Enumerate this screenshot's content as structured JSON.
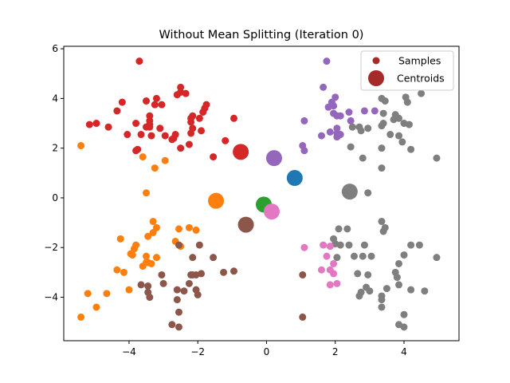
{
  "chart_data": {
    "type": "scatter",
    "title": "Without Mean Splitting (Iteration 0)",
    "xlabel": "",
    "ylabel": "",
    "xlim": [
      -5.9,
      5.6
    ],
    "ylim": [
      -5.75,
      6.1
    ],
    "xticks": [
      -4,
      -2,
      0,
      2,
      4
    ],
    "yticks": [
      -4,
      -2,
      0,
      2,
      4,
      6
    ],
    "xtick_labels": [
      "−4",
      "−2",
      "0",
      "2",
      "4"
    ],
    "ytick_labels": [
      "−4",
      "−2",
      "0",
      "2",
      "4",
      "6"
    ],
    "grid": false,
    "legend": {
      "placement": "top-right",
      "entries": [
        {
          "label": "Samples",
          "marker": "small-dot",
          "color": "#a52a2a"
        },
        {
          "label": "Centroids",
          "marker": "large-dot",
          "color": "#a52a2a"
        }
      ]
    },
    "series": [
      {
        "color": "#d62728",
        "points": [
          [
            -3.7,
            5.5
          ],
          [
            -2.5,
            4.45
          ],
          [
            -2.5,
            4.25
          ],
          [
            -2.35,
            4.2
          ],
          [
            -2.6,
            4.15
          ],
          [
            -3.2,
            4.0
          ],
          [
            -3.25,
            3.75
          ],
          [
            -3.05,
            3.75
          ],
          [
            -3.5,
            3.9
          ],
          [
            -4.2,
            3.85
          ],
          [
            -4.35,
            3.5
          ],
          [
            -1.75,
            3.75
          ],
          [
            -1.8,
            3.6
          ],
          [
            -1.85,
            3.45
          ],
          [
            -2.15,
            3.3
          ],
          [
            -2.2,
            3.2
          ],
          [
            -1.95,
            3.2
          ],
          [
            -3.4,
            3.3
          ],
          [
            -3.4,
            3.1
          ],
          [
            -2.2,
            3.05
          ],
          [
            -0.95,
            3.2
          ],
          [
            -3.8,
            3.0
          ],
          [
            -3.4,
            2.95
          ],
          [
            -3.5,
            2.85
          ],
          [
            -3.4,
            2.85
          ],
          [
            -4.95,
            3.0
          ],
          [
            -5.15,
            2.95
          ],
          [
            -4.6,
            2.85
          ],
          [
            -3.1,
            2.8
          ],
          [
            -2.15,
            2.8
          ],
          [
            -1.9,
            2.7
          ],
          [
            -2.65,
            2.55
          ],
          [
            -2.2,
            2.6
          ],
          [
            -3.65,
            2.55
          ],
          [
            -3.35,
            2.5
          ],
          [
            -4.05,
            2.55
          ],
          [
            -2.7,
            2.4
          ],
          [
            -2.75,
            2.35
          ],
          [
            -2.95,
            2.5
          ],
          [
            -1.2,
            2.3
          ],
          [
            -2.25,
            2.15
          ],
          [
            -1.55,
            1.65
          ],
          [
            -2.5,
            2.0
          ],
          [
            -3.8,
            1.9
          ],
          [
            -3.75,
            1.95
          ]
        ]
      },
      {
        "color": "#ff7f0e",
        "points": [
          [
            -5.4,
            2.1
          ],
          [
            -3.6,
            1.65
          ],
          [
            -3.25,
            1.2
          ],
          [
            -2.95,
            1.5
          ],
          [
            -3.5,
            0.2
          ],
          [
            -3.3,
            -0.95
          ],
          [
            -3.2,
            -1.2
          ],
          [
            -3.3,
            -1.4
          ],
          [
            -3.45,
            -1.55
          ],
          [
            -2.55,
            -1.25
          ],
          [
            -2.05,
            -1.3
          ],
          [
            -2.25,
            -1.2
          ],
          [
            -4.25,
            -1.65
          ],
          [
            -3.8,
            -1.9
          ],
          [
            -3.85,
            -2.05
          ],
          [
            -3.95,
            -2.25
          ],
          [
            -3.9,
            -2.3
          ],
          [
            -3.5,
            -2.35
          ],
          [
            -3.2,
            -2.4
          ],
          [
            -3.5,
            -2.6
          ],
          [
            -3.6,
            -2.75
          ],
          [
            -3.45,
            -2.6
          ],
          [
            -3.35,
            -2.65
          ],
          [
            -4.35,
            -2.9
          ],
          [
            -4.15,
            -3.0
          ],
          [
            -4.0,
            -3.7
          ],
          [
            -5.2,
            -3.85
          ],
          [
            -4.65,
            -3.85
          ],
          [
            -4.95,
            -4.4
          ],
          [
            -5.4,
            -4.8
          ],
          [
            -2.65,
            -1.75
          ],
          [
            -2.5,
            -1.95
          ]
        ]
      },
      {
        "color": "#8c564b",
        "points": [
          [
            -2.55,
            -1.9
          ],
          [
            -1.95,
            -1.9
          ],
          [
            -2.15,
            -2.4
          ],
          [
            -1.55,
            -2.4
          ],
          [
            -3.05,
            -3.1
          ],
          [
            -2.2,
            -3.1
          ],
          [
            -2.15,
            -3.1
          ],
          [
            -2.05,
            -3.1
          ],
          [
            -1.9,
            -3.05
          ],
          [
            -1.25,
            -3.0
          ],
          [
            -0.95,
            -2.95
          ],
          [
            -3.45,
            -3.55
          ],
          [
            -3.65,
            -3.5
          ],
          [
            -3.0,
            -3.45
          ],
          [
            -2.25,
            -3.45
          ],
          [
            -3.45,
            -3.8
          ],
          [
            -3.4,
            -4.0
          ],
          [
            -2.6,
            -3.7
          ],
          [
            -2.4,
            -3.75
          ],
          [
            -2.05,
            -3.7
          ],
          [
            -2.0,
            -3.9
          ],
          [
            -2.6,
            -4.1
          ],
          [
            -2.55,
            -4.6
          ],
          [
            -2.75,
            -5.1
          ],
          [
            -2.55,
            -5.2
          ],
          [
            1.05,
            -3.1
          ],
          [
            1.05,
            -4.8
          ]
        ]
      },
      {
        "color": "#9467bd",
        "points": [
          [
            1.75,
            5.5
          ],
          [
            1.65,
            4.45
          ],
          [
            2.0,
            4.05
          ],
          [
            1.9,
            3.85
          ],
          [
            1.95,
            3.7
          ],
          [
            1.8,
            3.65
          ],
          [
            2.4,
            3.45
          ],
          [
            2.85,
            3.5
          ],
          [
            3.15,
            3.5
          ],
          [
            1.95,
            3.4
          ],
          [
            2.05,
            3.3
          ],
          [
            2.15,
            3.3
          ],
          [
            2.45,
            3.1
          ],
          [
            1.1,
            3.1
          ],
          [
            1.6,
            2.5
          ],
          [
            1.85,
            2.65
          ],
          [
            2.05,
            2.8
          ],
          [
            2.05,
            2.6
          ],
          [
            2.15,
            2.55
          ],
          [
            2.05,
            2.45
          ],
          [
            1.05,
            2.1
          ],
          [
            1.1,
            1.9
          ]
        ]
      },
      {
        "color": "#7f7f7f",
        "points": [
          [
            3.35,
            4.0
          ],
          [
            4.05,
            4.05
          ],
          [
            4.5,
            4.2
          ],
          [
            3.45,
            3.9
          ],
          [
            4.1,
            3.85
          ],
          [
            3.4,
            3.4
          ],
          [
            3.75,
            3.35
          ],
          [
            3.7,
            3.15
          ],
          [
            3.85,
            3.2
          ],
          [
            4.0,
            3.0
          ],
          [
            4.15,
            2.95
          ],
          [
            3.35,
            2.9
          ],
          [
            3.4,
            3.0
          ],
          [
            2.5,
            2.85
          ],
          [
            2.7,
            2.85
          ],
          [
            2.75,
            2.7
          ],
          [
            2.95,
            2.8
          ],
          [
            3.6,
            2.55
          ],
          [
            3.85,
            2.5
          ],
          [
            3.95,
            2.25
          ],
          [
            2.45,
            2.05
          ],
          [
            3.35,
            2.0
          ],
          [
            4.2,
            1.95
          ],
          [
            2.8,
            1.6
          ],
          [
            3.35,
            1.2
          ],
          [
            4.95,
            1.6
          ],
          [
            2.95,
            0.2
          ],
          [
            3.35,
            -0.95
          ],
          [
            3.45,
            -1.2
          ],
          [
            3.4,
            -1.35
          ],
          [
            2.1,
            -1.25
          ],
          [
            2.35,
            -1.25
          ],
          [
            1.95,
            -1.65
          ],
          [
            2.0,
            -1.85
          ],
          [
            2.15,
            -1.9
          ],
          [
            2.4,
            -1.9
          ],
          [
            2.85,
            -1.9
          ],
          [
            4.2,
            -1.9
          ],
          [
            4.45,
            -1.9
          ],
          [
            4.0,
            -2.3
          ],
          [
            2.55,
            -2.35
          ],
          [
            2.8,
            -2.35
          ],
          [
            3.05,
            -2.35
          ],
          [
            4.95,
            -2.4
          ],
          [
            2.05,
            -2.4
          ],
          [
            3.85,
            -2.65
          ],
          [
            2.65,
            -3.05
          ],
          [
            2.95,
            -3.1
          ],
          [
            3.75,
            -3.0
          ],
          [
            3.8,
            -3.2
          ],
          [
            2.9,
            -3.6
          ],
          [
            3.5,
            -3.65
          ],
          [
            3.85,
            -3.5
          ],
          [
            3.0,
            -3.75
          ],
          [
            2.75,
            -3.8
          ],
          [
            2.7,
            -3.95
          ],
          [
            3.35,
            -3.95
          ],
          [
            3.35,
            -4.1
          ],
          [
            4.2,
            -3.7
          ],
          [
            4.6,
            -3.75
          ],
          [
            3.35,
            -4.4
          ],
          [
            4.0,
            -4.7
          ],
          [
            3.85,
            -5.1
          ],
          [
            4.0,
            -5.2
          ]
        ]
      },
      {
        "color": "#e377c2",
        "points": [
          [
            1.65,
            -1.9
          ],
          [
            1.85,
            -1.95
          ],
          [
            1.75,
            -2.35
          ],
          [
            1.95,
            -2.65
          ],
          [
            1.1,
            -2.0
          ],
          [
            1.6,
            -2.9
          ],
          [
            1.85,
            -2.9
          ],
          [
            1.95,
            -3.05
          ],
          [
            1.85,
            -3.5
          ],
          [
            2.05,
            -3.45
          ]
        ]
      }
    ],
    "centroids": [
      {
        "x": -0.75,
        "y": 1.85,
        "color": "#d62728"
      },
      {
        "x": 0.22,
        "y": 1.6,
        "color": "#9467bd"
      },
      {
        "x": 0.82,
        "y": 0.8,
        "color": "#1f77b4"
      },
      {
        "x": 2.42,
        "y": 0.25,
        "color": "#7f7f7f"
      },
      {
        "x": -1.47,
        "y": -0.12,
        "color": "#ff7f0e"
      },
      {
        "x": -0.08,
        "y": -0.27,
        "color": "#2ca02c"
      },
      {
        "x": 0.15,
        "y": -0.55,
        "color": "#e377c2"
      },
      {
        "x": -0.6,
        "y": -1.08,
        "color": "#8c564b"
      }
    ]
  }
}
